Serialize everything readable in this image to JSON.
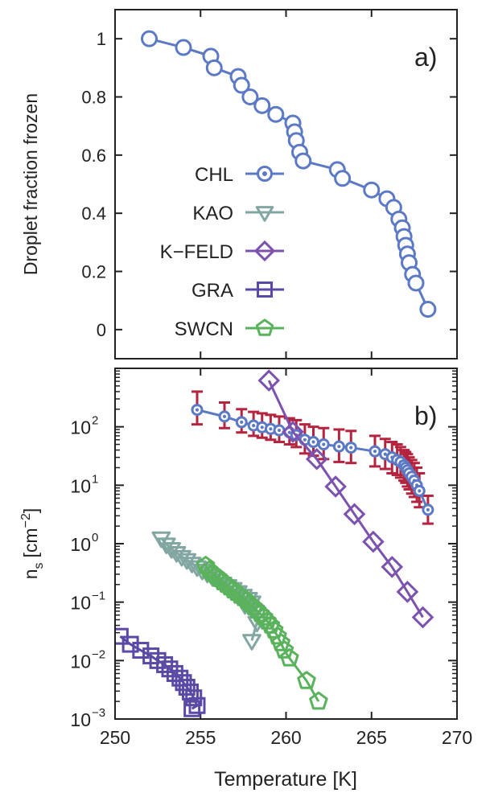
{
  "chart_data": [
    {
      "panel_label": "a)",
      "type": "line",
      "ylabel": "Droplet fraction frozen",
      "xlim": [
        250,
        270
      ],
      "ylim": [
        -0.1,
        1.1
      ],
      "yticks": [
        "0",
        "0.2",
        "0.4",
        "0.6",
        "0.8",
        "1"
      ],
      "legend_position": "center-left",
      "legend": [
        {
          "label": "CHL",
          "marker": "circle-dot",
          "color": "#5b79c5"
        },
        {
          "label": "KAO",
          "marker": "triangle-down",
          "color": "#82a6a2"
        },
        {
          "label": "K−FELD",
          "marker": "diamond",
          "color": "#7b52ae"
        },
        {
          "label": "GRA",
          "marker": "square",
          "color": "#5b49a5"
        },
        {
          "label": "SWCN",
          "marker": "pentagon",
          "color": "#5ab25c"
        }
      ],
      "series": [
        {
          "name": "CHL",
          "color": "#5b79c5",
          "x": [
            252.0,
            254.0,
            255.6,
            255.8,
            257.2,
            257.4,
            257.9,
            258.6,
            259.4,
            260.4,
            260.5,
            260.6,
            260.8,
            261.0,
            263.0,
            263.3,
            265.0,
            265.9,
            266.3,
            266.6,
            266.8,
            266.9,
            267.0,
            267.1,
            267.2,
            267.4,
            267.6,
            268.3
          ],
          "y": [
            1.0,
            0.97,
            0.94,
            0.9,
            0.87,
            0.84,
            0.8,
            0.77,
            0.74,
            0.71,
            0.68,
            0.65,
            0.61,
            0.58,
            0.55,
            0.52,
            0.48,
            0.45,
            0.42,
            0.38,
            0.35,
            0.32,
            0.29,
            0.26,
            0.23,
            0.19,
            0.16,
            0.07
          ]
        }
      ]
    },
    {
      "panel_label": "b)",
      "type": "scatter",
      "ylabel": "n",
      "ylabel_sub": "s",
      "ylabel_unit": "[cm",
      "ylabel_unit_exp": "−2",
      "ylabel_unit_close": "]",
      "xlabel": "Temperature [K]",
      "xlim": [
        250,
        270
      ],
      "xticks": [
        "250",
        "255",
        "260",
        "265",
        "270"
      ],
      "ylim_log10": [
        -3,
        3
      ],
      "log_y": true,
      "yticks": [
        {
          "base": "10",
          "exp": "-3"
        },
        {
          "base": "10",
          "exp": "-2"
        },
        {
          "base": "10",
          "exp": "-1"
        },
        {
          "base": "10",
          "exp": "0"
        },
        {
          "base": "10",
          "exp": "1"
        },
        {
          "base": "10",
          "exp": "2"
        }
      ],
      "errorbar_color": "#b5243e",
      "series": [
        {
          "name": "CHL",
          "color": "#5b79c5",
          "x": [
            254.8,
            256.4,
            257.4,
            258.1,
            258.6,
            259.1,
            259.6,
            260.2,
            260.6,
            261.1,
            261.6,
            262.2,
            263.1,
            263.8,
            265.2,
            265.8,
            266.2,
            266.5,
            266.7,
            266.9,
            267.0,
            267.1,
            267.2,
            267.35,
            267.5,
            267.65,
            267.8,
            268.3
          ],
          "y": [
            195,
            150,
            120,
            105,
            98,
            92,
            87,
            80,
            72,
            60,
            55,
            50,
            46,
            44,
            38,
            34,
            30,
            27,
            25,
            22,
            20,
            18,
            16,
            14,
            12,
            10,
            8,
            3.8
          ],
          "err_hi": [
            400,
            260,
            200,
            180,
            170,
            160,
            150,
            140,
            130,
            110,
            100,
            95,
            90,
            85,
            70,
            62,
            55,
            50,
            45,
            40,
            37,
            34,
            30,
            27,
            24,
            20,
            16,
            6.6
          ],
          "err_lo": [
            110,
            95,
            80,
            70,
            65,
            60,
            55,
            50,
            45,
            35,
            32,
            28,
            25,
            24,
            21,
            19,
            16,
            15,
            13.5,
            12,
            11,
            9.5,
            8.5,
            7.2,
            6.3,
            5.2,
            4.2,
            2.2
          ]
        },
        {
          "name": "K−FELD",
          "color": "#7b52ae",
          "x": [
            259.0,
            260.4,
            261.8,
            262.9,
            264.0,
            265.1,
            266.2,
            267.1,
            268.0
          ],
          "y": [
            620,
            82,
            28,
            9.5,
            3.2,
            1.08,
            0.4,
            0.15,
            0.055
          ]
        },
        {
          "name": "KAO",
          "color": "#82a6a2",
          "x": [
            252.7,
            253.0,
            253.3,
            253.6,
            253.9,
            254.2,
            254.5,
            254.8,
            255.1,
            255.4,
            255.7,
            256.0,
            256.3,
            256.6,
            256.9,
            257.2,
            257.5,
            257.8,
            258.0,
            257.6,
            258.2,
            258.3,
            258.0
          ],
          "y": [
            1.25,
            0.98,
            0.82,
            0.7,
            0.6,
            0.53,
            0.46,
            0.4,
            0.35,
            0.31,
            0.27,
            0.24,
            0.21,
            0.19,
            0.17,
            0.15,
            0.13,
            0.115,
            0.1,
            0.09,
            0.07,
            0.045,
            0.022
          ]
        },
        {
          "name": "SWCN",
          "color": "#5ab25c",
          "x": [
            255.3,
            255.5,
            255.7,
            255.9,
            256.1,
            256.3,
            256.5,
            256.7,
            256.9,
            257.1,
            257.3,
            257.5,
            257.7,
            257.9,
            258.1,
            258.3,
            258.5,
            258.7,
            258.9,
            259.1,
            259.3,
            259.5,
            259.7,
            259.9,
            260.2,
            261.2,
            261.9
          ],
          "y": [
            0.42,
            0.35,
            0.31,
            0.28,
            0.25,
            0.22,
            0.2,
            0.18,
            0.16,
            0.145,
            0.13,
            0.118,
            0.105,
            0.093,
            0.082,
            0.072,
            0.063,
            0.055,
            0.047,
            0.04,
            0.033,
            0.026,
            0.02,
            0.015,
            0.011,
            0.0045,
            0.002
          ]
        },
        {
          "name": "GRA",
          "color": "#5b49a5",
          "x": [
            250.3,
            250.9,
            251.5,
            252.1,
            252.5,
            252.9,
            253.2,
            253.5,
            253.8,
            254.0,
            254.2,
            254.4,
            254.6,
            254.8,
            254.5
          ],
          "y": [
            0.026,
            0.019,
            0.015,
            0.012,
            0.01,
            0.0085,
            0.0072,
            0.006,
            0.005,
            0.0042,
            0.0035,
            0.0029,
            0.0023,
            0.0017,
            0.0015
          ]
        }
      ]
    }
  ]
}
